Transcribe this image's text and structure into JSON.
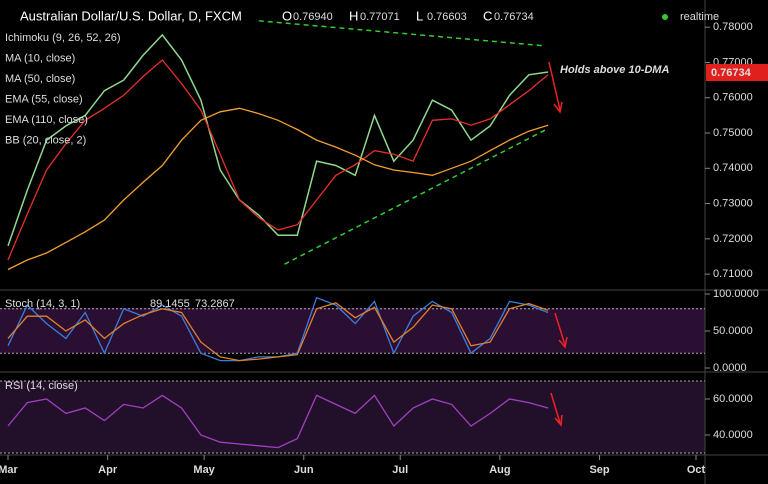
{
  "chart_data": [
    {
      "type": "line",
      "title": "Australian Dollar/U.S. Dollar, D, FXCM",
      "ohlc": [
        {
          "label": "O",
          "value": "0.76940"
        },
        {
          "label": "H",
          "value": "0.77071"
        },
        {
          "label": "L",
          "value": "0.76603"
        },
        {
          "label": "C",
          "value": "0.76734"
        }
      ],
      "realtime": "realtime",
      "indicators": [
        "Ichimoku (9, 26, 52, 26)",
        "MA (10, close)",
        "MA (50, close)",
        "EMA (55, close)",
        "EMA (110, close)",
        "BB (20, close, 2)"
      ],
      "last_price": "0.76734",
      "annotation": "Holds above 10-DMA",
      "x": [
        0,
        6,
        12,
        18,
        24,
        30,
        36,
        42,
        48,
        54,
        60,
        66,
        72,
        78,
        84,
        90,
        96,
        102,
        108,
        114,
        120,
        126,
        132,
        138,
        144,
        150,
        156,
        162,
        168
      ],
      "xlim": [
        0,
        214
      ],
      "ylim": [
        0.7055,
        0.7877
      ],
      "yticks": [
        {
          "value": 0.71,
          "label": "0.71000"
        },
        {
          "value": 0.72,
          "label": "0.72000"
        },
        {
          "value": 0.73,
          "label": "0.73000"
        },
        {
          "value": 0.74,
          "label": "0.74000"
        },
        {
          "value": 0.75,
          "label": "0.75000"
        },
        {
          "value": 0.76,
          "label": "0.76000"
        },
        {
          "value": 0.77,
          "label": "0.77000"
        },
        {
          "value": 0.78,
          "label": "0.78000"
        }
      ],
      "series": [
        {
          "name": "Close",
          "color": "#8fd98f",
          "values": [
            0.718,
            0.7338,
            0.748,
            0.752,
            0.755,
            0.762,
            0.765,
            0.772,
            0.7778,
            0.7707,
            0.7593,
            0.7395,
            0.731,
            0.7267,
            0.721,
            0.721,
            0.742,
            0.7408,
            0.738,
            0.755,
            0.742,
            0.748,
            0.7593,
            0.7565,
            0.748,
            0.752,
            0.7607,
            0.7665,
            0.7673
          ]
        },
        {
          "name": "MA (10, close)",
          "color": "#e8302a",
          "values": [
            0.714,
            0.727,
            0.7395,
            0.747,
            0.7536,
            0.757,
            0.7607,
            0.766,
            0.7707,
            0.764,
            0.7565,
            0.744,
            0.731,
            0.726,
            0.7225,
            0.724,
            0.731,
            0.738,
            0.741,
            0.745,
            0.744,
            0.742,
            0.7536,
            0.754,
            0.7522,
            0.754,
            0.758,
            0.762,
            0.7665
          ]
        },
        {
          "name": "MA (50, close)",
          "color": "#f0a030",
          "values": [
            0.7113,
            0.714,
            0.716,
            0.719,
            0.722,
            0.7253,
            0.731,
            0.736,
            0.7408,
            0.748,
            0.7536,
            0.756,
            0.757,
            0.7555,
            0.7536,
            0.751,
            0.748,
            0.746,
            0.7437,
            0.741,
            0.7395,
            0.7388,
            0.738,
            0.74,
            0.742,
            0.745,
            0.748,
            0.7505,
            0.7522
          ]
        }
      ],
      "trendlines": [
        {
          "color": "#33cc33",
          "points": [
            [
              78,
              0.7818
            ],
            [
              167,
              0.7747
            ]
          ]
        },
        {
          "color": "#33cc33",
          "points": [
            [
              86,
              0.7128
            ],
            [
              167,
              0.7508
            ]
          ]
        }
      ]
    },
    {
      "type": "line",
      "title": "Stoch (14, 3, 1)",
      "readouts": [
        "89.1455",
        "73.2867"
      ],
      "x": [
        0,
        6,
        12,
        18,
        24,
        30,
        36,
        42,
        48,
        54,
        60,
        66,
        72,
        78,
        84,
        90,
        96,
        102,
        108,
        114,
        120,
        126,
        132,
        138,
        144,
        150,
        156,
        162,
        168
      ],
      "xlim": [
        0,
        214
      ],
      "ylim": [
        -5.4,
        105.4
      ],
      "yticks": [
        {
          "value": 100,
          "label": "100.0000"
        },
        {
          "value": 50,
          "label": "50.0000"
        },
        {
          "value": 0,
          "label": "0.0000"
        }
      ],
      "bands": [
        20,
        80
      ],
      "series": [
        {
          "name": "%K",
          "color": "#3b7ddd",
          "values": [
            30,
            85,
            60,
            40,
            75,
            20,
            80,
            70,
            85,
            70,
            20,
            10,
            10,
            15,
            15,
            20,
            95,
            85,
            60,
            90,
            20,
            70,
            90,
            75,
            20,
            40,
            90,
            85,
            75
          ]
        },
        {
          "name": "%D",
          "color": "#e0802a",
          "values": [
            40,
            70,
            70,
            50,
            65,
            40,
            60,
            72,
            80,
            75,
            35,
            15,
            10,
            12,
            15,
            18,
            80,
            88,
            68,
            82,
            35,
            55,
            85,
            80,
            30,
            35,
            80,
            87,
            78
          ]
        }
      ]
    },
    {
      "type": "line",
      "title": "RSI (14, close)",
      "x": [
        0,
        6,
        12,
        18,
        24,
        30,
        36,
        42,
        48,
        54,
        60,
        66,
        72,
        78,
        84,
        90,
        96,
        102,
        108,
        114,
        120,
        126,
        132,
        138,
        144,
        150,
        156,
        162,
        168
      ],
      "xlim": [
        0,
        214
      ],
      "ylim": [
        28.9,
        75
      ],
      "yticks": [
        {
          "value": 60,
          "label": "60.0000"
        },
        {
          "value": 40,
          "label": "40.0000"
        }
      ],
      "bands": [
        30,
        70
      ],
      "xticks": [
        {
          "value": 0,
          "label": "Mar"
        },
        {
          "value": 31,
          "label": "Apr"
        },
        {
          "value": 61,
          "label": "May"
        },
        {
          "value": 92,
          "label": "Jun"
        },
        {
          "value": 122,
          "label": "Jul"
        },
        {
          "value": 153,
          "label": "Aug"
        },
        {
          "value": 184,
          "label": "Sep"
        },
        {
          "value": 214,
          "label": "Oct"
        }
      ],
      "series": [
        {
          "name": "RSI",
          "color": "#a040c0",
          "values": [
            45,
            58,
            60,
            52,
            55,
            48,
            57,
            55,
            62,
            55,
            40,
            36,
            35,
            34,
            33,
            38,
            62,
            57,
            52,
            62,
            45,
            55,
            60,
            57,
            45,
            52,
            60,
            58,
            55
          ]
        }
      ]
    }
  ]
}
